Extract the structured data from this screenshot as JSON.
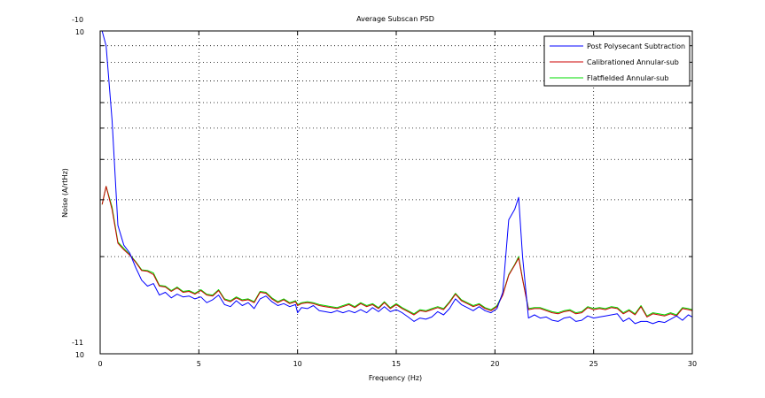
{
  "chart_data": {
    "type": "line",
    "title": "Average Subscan PSD",
    "xlabel": "Frequency (Hz)",
    "ylabel": "Noise (A/rtHz)",
    "xlim": [
      0,
      30
    ],
    "ylim": [
      1e-11,
      1e-10
    ],
    "yscale": "log",
    "grid": true,
    "legend_position": "top-right",
    "x_ticks": [
      0,
      5,
      10,
      15,
      20,
      25,
      30
    ],
    "x_tick_labels": [
      "0",
      "5",
      "10",
      "15",
      "20",
      "25",
      "30"
    ],
    "y_tick_labels": [
      {
        "value": 1e-10,
        "base": "10",
        "exp": "-10"
      },
      {
        "value": 1e-11,
        "base": "10",
        "exp": "-11"
      }
    ],
    "series": [
      {
        "name": "Post Polysecant Subtraction",
        "color": "#0000ff",
        "x": [
          0.1,
          0.3,
          0.6,
          0.9,
          1.2,
          1.5,
          1.8,
          2.1,
          2.4,
          2.7,
          3.0,
          3.3,
          3.6,
          3.9,
          4.2,
          4.5,
          4.8,
          5.1,
          5.4,
          5.7,
          6.0,
          6.3,
          6.6,
          6.9,
          7.2,
          7.5,
          7.8,
          8.1,
          8.4,
          8.7,
          9.0,
          9.3,
          9.6,
          9.9,
          10.0,
          10.2,
          10.5,
          10.8,
          11.1,
          11.4,
          11.7,
          12.0,
          12.3,
          12.6,
          12.9,
          13.2,
          13.5,
          13.8,
          14.1,
          14.4,
          14.7,
          15.0,
          15.3,
          15.6,
          15.9,
          16.2,
          16.5,
          16.8,
          17.1,
          17.4,
          17.7,
          18.0,
          18.3,
          18.6,
          18.9,
          19.2,
          19.5,
          19.8,
          20.1,
          20.4,
          20.7,
          21.0,
          21.2,
          21.4,
          21.7,
          22.0,
          22.3,
          22.6,
          22.9,
          23.2,
          23.5,
          23.8,
          24.1,
          24.4,
          24.7,
          25.0,
          25.3,
          25.6,
          25.9,
          26.2,
          26.5,
          26.8,
          27.1,
          27.4,
          27.7,
          28.0,
          28.3,
          28.6,
          28.9,
          29.2,
          29.5,
          29.8,
          30.0
        ],
        "y": [
          1e-10,
          9e-11,
          5.3e-11,
          2.5e-11,
          2.17e-11,
          2.05e-11,
          1.85e-11,
          1.69e-11,
          1.62e-11,
          1.65e-11,
          1.52e-11,
          1.55e-11,
          1.49e-11,
          1.53e-11,
          1.5e-11,
          1.51e-11,
          1.48e-11,
          1.5e-11,
          1.44e-11,
          1.47e-11,
          1.52e-11,
          1.42e-11,
          1.4e-11,
          1.46e-11,
          1.41e-11,
          1.44e-11,
          1.38e-11,
          1.48e-11,
          1.51e-11,
          1.45e-11,
          1.41e-11,
          1.43e-11,
          1.4e-11,
          1.42e-11,
          1.34e-11,
          1.39e-11,
          1.38e-11,
          1.41e-11,
          1.36e-11,
          1.35e-11,
          1.34e-11,
          1.36e-11,
          1.34e-11,
          1.36e-11,
          1.34e-11,
          1.37e-11,
          1.34e-11,
          1.39e-11,
          1.35e-11,
          1.4e-11,
          1.35e-11,
          1.37e-11,
          1.34e-11,
          1.3e-11,
          1.26e-11,
          1.29e-11,
          1.28e-11,
          1.3e-11,
          1.35e-11,
          1.32e-11,
          1.38e-11,
          1.48e-11,
          1.42e-11,
          1.39e-11,
          1.36e-11,
          1.4e-11,
          1.36e-11,
          1.34e-11,
          1.38e-11,
          1.55e-11,
          2.6e-11,
          2.8e-11,
          3.05e-11,
          2e-11,
          1.29e-11,
          1.32e-11,
          1.29e-11,
          1.3e-11,
          1.27e-11,
          1.26e-11,
          1.29e-11,
          1.3e-11,
          1.26e-11,
          1.27e-11,
          1.31e-11,
          1.29e-11,
          1.3e-11,
          1.31e-11,
          1.32e-11,
          1.33e-11,
          1.26e-11,
          1.29e-11,
          1.24e-11,
          1.26e-11,
          1.26e-11,
          1.24e-11,
          1.26e-11,
          1.25e-11,
          1.28e-11,
          1.31e-11,
          1.27e-11,
          1.32e-11,
          1.3e-11
        ]
      },
      {
        "name": "Calibrationed Annular-sub",
        "color": "#cc0000",
        "x": [
          0.1,
          0.3,
          0.6,
          0.9,
          1.2,
          1.5,
          1.8,
          2.1,
          2.4,
          2.7,
          3.0,
          3.3,
          3.6,
          3.9,
          4.2,
          4.5,
          4.8,
          5.1,
          5.4,
          5.7,
          6.0,
          6.3,
          6.6,
          6.9,
          7.2,
          7.5,
          7.8,
          8.1,
          8.4,
          8.7,
          9.0,
          9.3,
          9.6,
          9.9,
          10.0,
          10.2,
          10.5,
          10.8,
          11.1,
          11.4,
          11.7,
          12.0,
          12.3,
          12.6,
          12.9,
          13.2,
          13.5,
          13.8,
          14.1,
          14.4,
          14.7,
          15.0,
          15.3,
          15.6,
          15.9,
          16.2,
          16.5,
          16.8,
          17.1,
          17.4,
          17.7,
          18.0,
          18.3,
          18.6,
          18.9,
          19.2,
          19.5,
          19.8,
          20.1,
          20.4,
          20.7,
          21.0,
          21.2,
          21.4,
          21.7,
          22.0,
          22.3,
          22.6,
          22.9,
          23.2,
          23.5,
          23.8,
          24.1,
          24.4,
          24.7,
          25.0,
          25.3,
          25.6,
          25.9,
          26.2,
          26.5,
          26.8,
          27.1,
          27.4,
          27.7,
          28.0,
          28.3,
          28.6,
          28.9,
          29.2,
          29.5,
          29.8,
          30.0
        ],
        "y": [
          2.9e-11,
          3.3e-11,
          2.8e-11,
          2.2e-11,
          2.1e-11,
          2.02e-11,
          1.92e-11,
          1.81e-11,
          1.8e-11,
          1.76e-11,
          1.62e-11,
          1.61e-11,
          1.56e-11,
          1.6e-11,
          1.55e-11,
          1.56e-11,
          1.53e-11,
          1.57e-11,
          1.52e-11,
          1.51e-11,
          1.57e-11,
          1.47e-11,
          1.45e-11,
          1.49e-11,
          1.46e-11,
          1.47e-11,
          1.44e-11,
          1.55e-11,
          1.54e-11,
          1.48e-11,
          1.44e-11,
          1.47e-11,
          1.43e-11,
          1.45e-11,
          1.41e-11,
          1.43e-11,
          1.44e-11,
          1.43e-11,
          1.41e-11,
          1.4e-11,
          1.39e-11,
          1.38e-11,
          1.4e-11,
          1.42e-11,
          1.39e-11,
          1.43e-11,
          1.4e-11,
          1.42e-11,
          1.38e-11,
          1.44e-11,
          1.38e-11,
          1.42e-11,
          1.38e-11,
          1.35e-11,
          1.32e-11,
          1.36e-11,
          1.35e-11,
          1.37e-11,
          1.39e-11,
          1.37e-11,
          1.44e-11,
          1.53e-11,
          1.46e-11,
          1.43e-11,
          1.4e-11,
          1.42e-11,
          1.38e-11,
          1.36e-11,
          1.4e-11,
          1.52e-11,
          1.75e-11,
          1.88e-11,
          1.98e-11,
          1.7e-11,
          1.37e-11,
          1.38e-11,
          1.38e-11,
          1.36e-11,
          1.34e-11,
          1.33e-11,
          1.35e-11,
          1.36e-11,
          1.33e-11,
          1.34e-11,
          1.39e-11,
          1.37e-11,
          1.38e-11,
          1.37e-11,
          1.39e-11,
          1.38e-11,
          1.33e-11,
          1.36e-11,
          1.32e-11,
          1.4e-11,
          1.3e-11,
          1.33e-11,
          1.32e-11,
          1.31e-11,
          1.33e-11,
          1.31e-11,
          1.38e-11,
          1.37e-11,
          1.36e-11
        ]
      },
      {
        "name": "Flatfielded Annular-sub",
        "color": "#00dd00",
        "x": [
          0.1,
          0.3,
          0.6,
          0.9,
          1.2,
          1.5,
          1.8,
          2.1,
          2.4,
          2.7,
          3.0,
          3.3,
          3.6,
          3.9,
          4.2,
          4.5,
          4.8,
          5.1,
          5.4,
          5.7,
          6.0,
          6.3,
          6.6,
          6.9,
          7.2,
          7.5,
          7.8,
          8.1,
          8.4,
          8.7,
          9.0,
          9.3,
          9.6,
          9.9,
          10.0,
          10.2,
          10.5,
          10.8,
          11.1,
          11.4,
          11.7,
          12.0,
          12.3,
          12.6,
          12.9,
          13.2,
          13.5,
          13.8,
          14.1,
          14.4,
          14.7,
          15.0,
          15.3,
          15.6,
          15.9,
          16.2,
          16.5,
          16.8,
          17.1,
          17.4,
          17.7,
          18.0,
          18.3,
          18.6,
          18.9,
          19.2,
          19.5,
          19.8,
          20.1,
          20.4,
          20.7,
          21.0,
          21.2,
          21.4,
          21.7,
          22.0,
          22.3,
          22.6,
          22.9,
          23.2,
          23.5,
          23.8,
          24.1,
          24.4,
          24.7,
          25.0,
          25.3,
          25.6,
          25.9,
          26.2,
          26.5,
          26.8,
          27.1,
          27.4,
          27.7,
          28.0,
          28.3,
          28.6,
          28.9,
          29.2,
          29.5,
          29.8,
          30.0
        ],
        "y": [
          2.9e-11,
          3.3e-11,
          2.85e-11,
          2.22e-11,
          2.12e-11,
          2.03e-11,
          1.93e-11,
          1.82e-11,
          1.81e-11,
          1.78e-11,
          1.63e-11,
          1.62e-11,
          1.57e-11,
          1.61e-11,
          1.56e-11,
          1.57e-11,
          1.54e-11,
          1.58e-11,
          1.53e-11,
          1.52e-11,
          1.58e-11,
          1.48e-11,
          1.46e-11,
          1.5e-11,
          1.47e-11,
          1.48e-11,
          1.45e-11,
          1.56e-11,
          1.55e-11,
          1.49e-11,
          1.45e-11,
          1.48e-11,
          1.44e-11,
          1.46e-11,
          1.42e-11,
          1.44e-11,
          1.45e-11,
          1.44e-11,
          1.42e-11,
          1.41e-11,
          1.4e-11,
          1.39e-11,
          1.41e-11,
          1.43e-11,
          1.4e-11,
          1.44e-11,
          1.41e-11,
          1.43e-11,
          1.39e-11,
          1.45e-11,
          1.39e-11,
          1.43e-11,
          1.39e-11,
          1.36e-11,
          1.33e-11,
          1.37e-11,
          1.36e-11,
          1.38e-11,
          1.4e-11,
          1.38e-11,
          1.45e-11,
          1.54e-11,
          1.47e-11,
          1.44e-11,
          1.41e-11,
          1.43e-11,
          1.39e-11,
          1.37e-11,
          1.41e-11,
          1.53e-11,
          1.76e-11,
          1.89e-11,
          2e-11,
          1.71e-11,
          1.38e-11,
          1.39e-11,
          1.39e-11,
          1.37e-11,
          1.35e-11,
          1.34e-11,
          1.36e-11,
          1.37e-11,
          1.34e-11,
          1.35e-11,
          1.4e-11,
          1.38e-11,
          1.39e-11,
          1.38e-11,
          1.4e-11,
          1.39e-11,
          1.34e-11,
          1.37e-11,
          1.33e-11,
          1.41e-11,
          1.31e-11,
          1.34e-11,
          1.33e-11,
          1.32e-11,
          1.34e-11,
          1.32e-11,
          1.39e-11,
          1.38e-11,
          1.37e-11
        ]
      }
    ]
  }
}
